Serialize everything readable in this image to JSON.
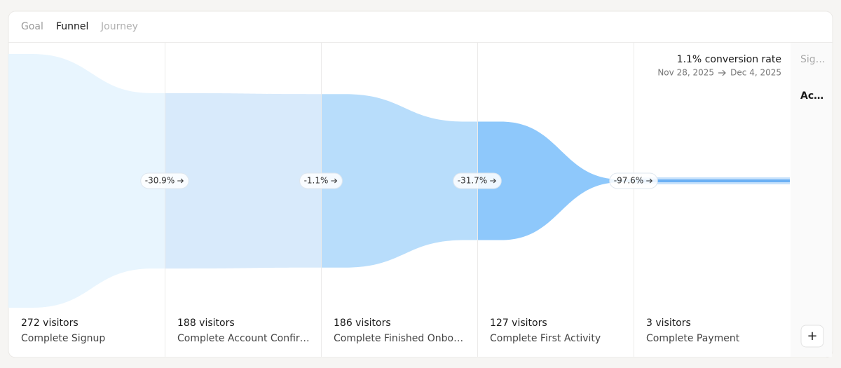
{
  "tabs": [
    "Goal",
    "Funnel",
    "Journey"
  ],
  "summary": {
    "conversion": "1.1% conversion rate",
    "date_from": "Nov 28, 2025",
    "date_to": "Dec 4, 2025"
  },
  "side_panel": {
    "items": [
      "Sig…",
      "Ac…"
    ],
    "add_button": "+"
  },
  "chart_data": {
    "type": "funnel",
    "categories": [
      "Complete Signup",
      "Complete Account Confir…",
      "Complete Finished Onbo…",
      "Complete First Activity",
      "Complete Payment"
    ],
    "values": [
      272,
      188,
      186,
      127,
      3
    ],
    "value_labels": [
      "272 visitors",
      "188 visitors",
      "186 visitors",
      "127 visitors",
      "3 visitors"
    ],
    "drop_values": [
      -30.9,
      -1.1,
      -31.7,
      -97.6
    ],
    "drop_labels": [
      "-30.9%",
      "-1.1%",
      "-31.7%",
      "-97.6%"
    ],
    "colors": [
      "#e8f5fe",
      "#d8eafb",
      "#b8ddfb",
      "#8ec8fb",
      "#62abf4"
    ]
  }
}
